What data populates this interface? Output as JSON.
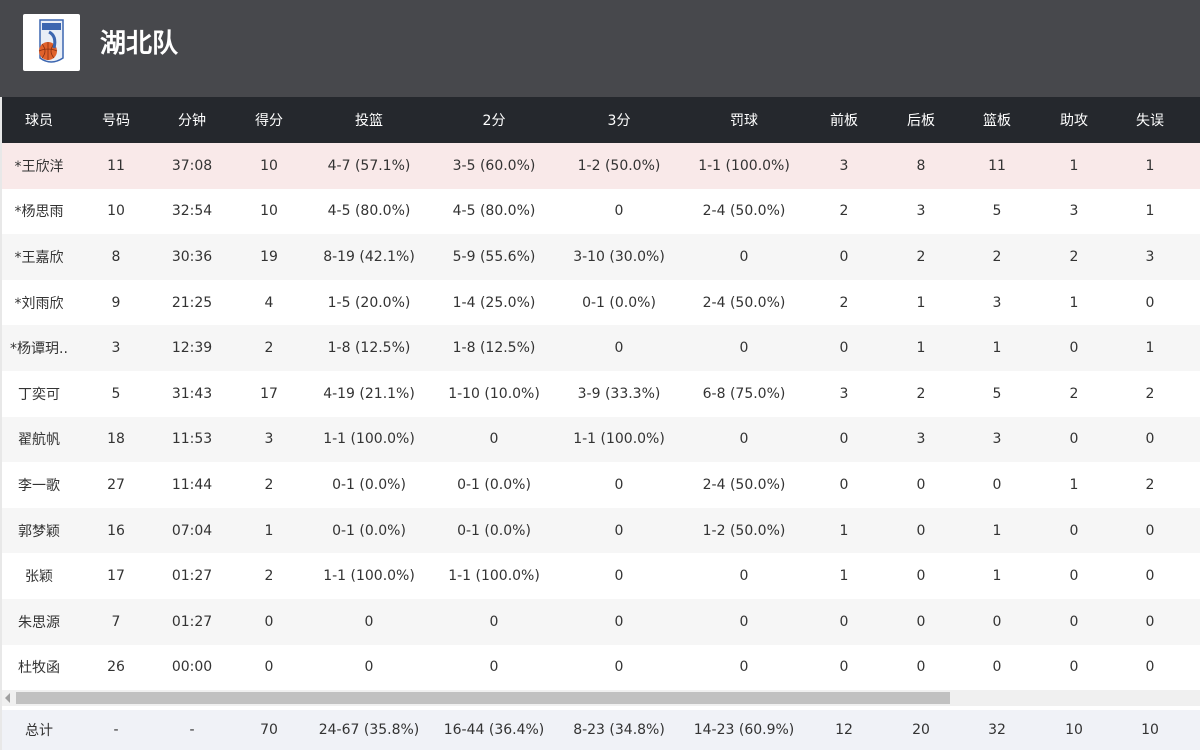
{
  "header": {
    "team_name": "湖北队",
    "logo_icon": "hubei-team-logo"
  },
  "columns": [
    "球员",
    "号码",
    "分钟",
    "得分",
    "投篮",
    "2分",
    "3分",
    "罚球",
    "前板",
    "后板",
    "篮板",
    "助攻",
    "失误"
  ],
  "rows": [
    [
      "*王欣洋",
      "11",
      "37:08",
      "10",
      "4-7 (57.1%)",
      "3-5 (60.0%)",
      "1-2 (50.0%)",
      "1-1 (100.0%)",
      "3",
      "8",
      "11",
      "1",
      "1"
    ],
    [
      "*杨思雨",
      "10",
      "32:54",
      "10",
      "4-5 (80.0%)",
      "4-5 (80.0%)",
      "0",
      "2-4 (50.0%)",
      "2",
      "3",
      "5",
      "3",
      "1"
    ],
    [
      "*王嘉欣",
      "8",
      "30:36",
      "19",
      "8-19 (42.1%)",
      "5-9 (55.6%)",
      "3-10 (30.0%)",
      "0",
      "0",
      "2",
      "2",
      "2",
      "3"
    ],
    [
      "*刘雨欣",
      "9",
      "21:25",
      "4",
      "1-5 (20.0%)",
      "1-4 (25.0%)",
      "0-1 (0.0%)",
      "2-4 (50.0%)",
      "2",
      "1",
      "3",
      "1",
      "0"
    ],
    [
      "*杨谭玥..",
      "3",
      "12:39",
      "2",
      "1-8 (12.5%)",
      "1-8 (12.5%)",
      "0",
      "0",
      "0",
      "1",
      "1",
      "0",
      "1"
    ],
    [
      "丁奕可",
      "5",
      "31:43",
      "17",
      "4-19 (21.1%)",
      "1-10 (10.0%)",
      "3-9 (33.3%)",
      "6-8 (75.0%)",
      "3",
      "2",
      "5",
      "2",
      "2"
    ],
    [
      "翟航帆",
      "18",
      "11:53",
      "3",
      "1-1 (100.0%)",
      "0",
      "1-1 (100.0%)",
      "0",
      "0",
      "3",
      "3",
      "0",
      "0"
    ],
    [
      "李一歌",
      "27",
      "11:44",
      "2",
      "0-1 (0.0%)",
      "0-1 (0.0%)",
      "0",
      "2-4 (50.0%)",
      "0",
      "0",
      "0",
      "1",
      "2"
    ],
    [
      "郭梦颖",
      "16",
      "07:04",
      "1",
      "0-1 (0.0%)",
      "0-1 (0.0%)",
      "0",
      "1-2 (50.0%)",
      "1",
      "0",
      "1",
      "0",
      "0"
    ],
    [
      "张颖",
      "17",
      "01:27",
      "2",
      "1-1 (100.0%)",
      "1-1 (100.0%)",
      "0",
      "0",
      "1",
      "0",
      "1",
      "0",
      "0"
    ],
    [
      "朱思源",
      "7",
      "01:27",
      "0",
      "0",
      "0",
      "0",
      "0",
      "0",
      "0",
      "0",
      "0",
      "0"
    ],
    [
      "杜牧函",
      "26",
      "00:00",
      "0",
      "0",
      "0",
      "0",
      "0",
      "0",
      "0",
      "0",
      "0",
      "0"
    ]
  ],
  "totals": [
    "总计",
    "-",
    "-",
    "70",
    "24-67 (35.8%)",
    "16-44 (36.4%)",
    "8-23 (34.8%)",
    "14-23 (60.9%)",
    "12",
    "20",
    "32",
    "10",
    "10"
  ],
  "colors": {
    "header_bg": "#47484c",
    "thead_bg": "#25282d",
    "highlight_row": "#f9e9e9",
    "footer_bg": "#f0f2f7"
  }
}
